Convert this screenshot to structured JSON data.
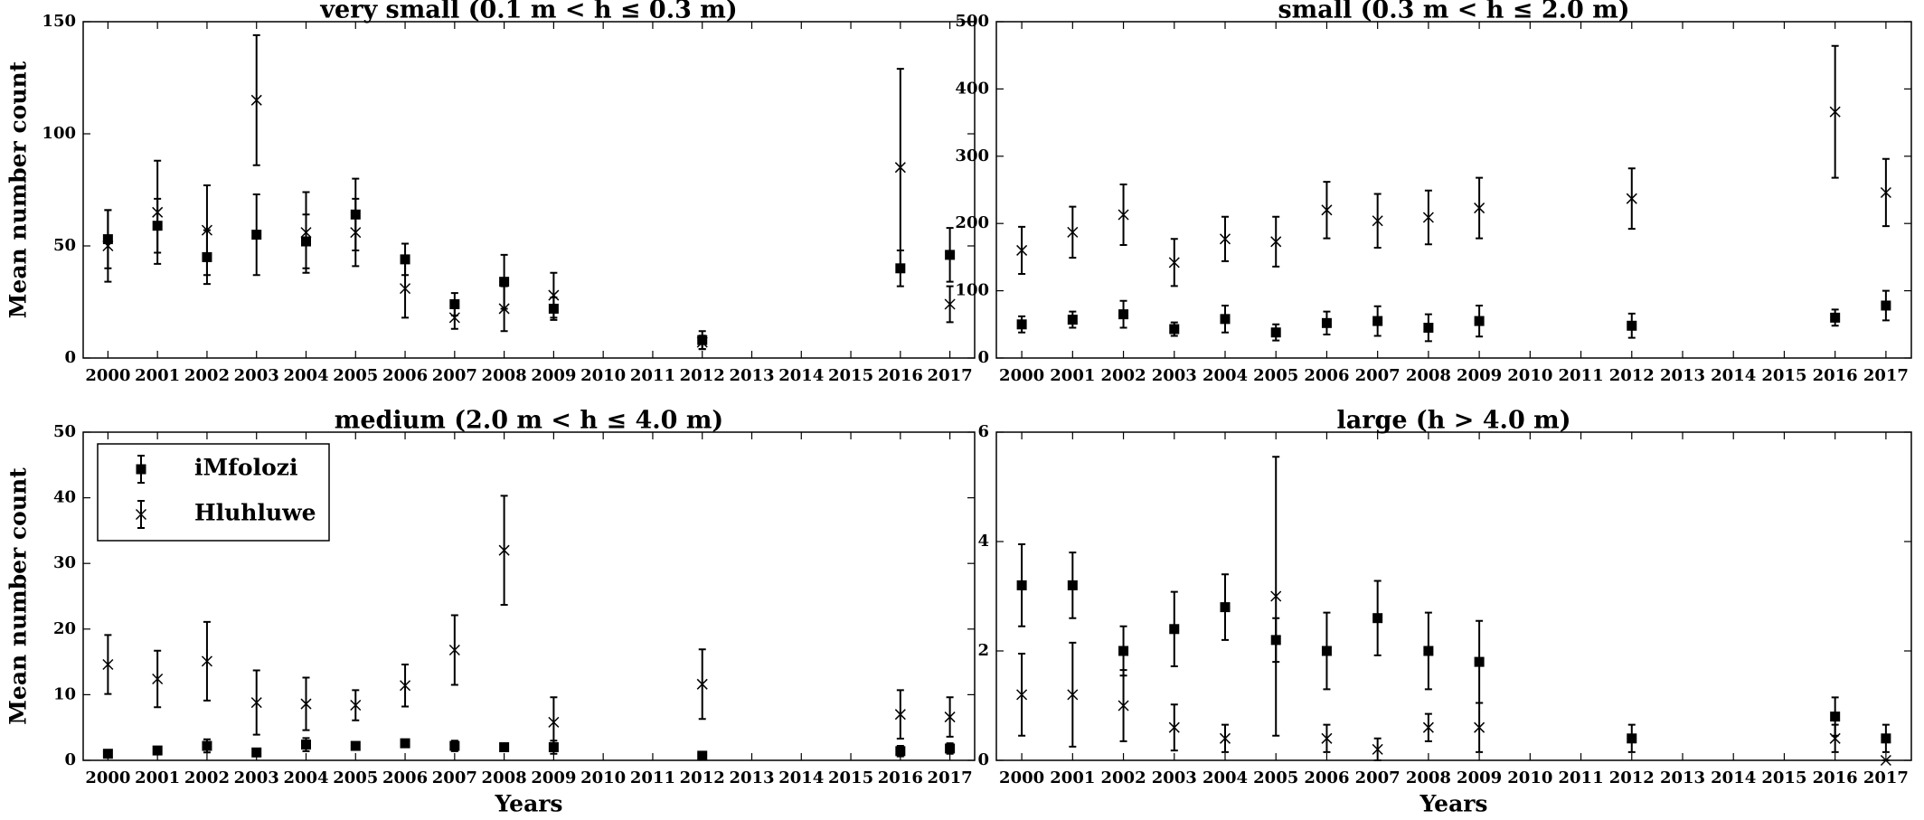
{
  "chart_data": [
    {
      "type": "errorbar",
      "title": "very small (0.1 m < h ≤ 0.3 m)",
      "ylabel": "Mean number count",
      "categories": [
        "2000",
        "2001",
        "2002",
        "2003",
        "2004",
        "2005",
        "2006",
        "2007",
        "2008",
        "2009",
        "2010",
        "2011",
        "2012",
        "2013",
        "2014",
        "2015",
        "2016",
        "2017"
      ],
      "series": [
        {
          "marker": "square",
          "color": "#000000",
          "values": [
            53,
            59,
            45,
            55,
            52,
            64,
            44,
            24,
            34,
            22,
            null,
            null,
            8,
            null,
            null,
            null,
            40,
            46
          ],
          "errors": [
            13,
            12,
            12,
            18,
            12,
            16,
            7,
            5,
            12,
            5,
            null,
            null,
            4,
            null,
            null,
            null,
            8,
            12
          ]
        },
        {
          "marker": "x",
          "color": "#000000",
          "values": [
            50,
            65,
            57,
            115,
            56,
            56,
            31,
            18,
            22,
            28,
            null,
            null,
            7,
            null,
            null,
            null,
            85,
            24
          ],
          "errors": [
            16,
            23,
            20,
            29,
            18,
            15,
            13,
            5,
            10,
            10,
            null,
            null,
            3,
            null,
            null,
            null,
            44,
            8
          ]
        }
      ],
      "ylim": [
        0,
        150
      ],
      "yticks": [
        0,
        50,
        100,
        150
      ]
    },
    {
      "type": "errorbar",
      "title": "small (0.3 m < h ≤ 2.0 m)",
      "categories": [
        "2000",
        "2001",
        "2002",
        "2003",
        "2004",
        "2005",
        "2006",
        "2007",
        "2008",
        "2009",
        "2010",
        "2011",
        "2012",
        "2013",
        "2014",
        "2015",
        "2016",
        "2017"
      ],
      "series": [
        {
          "marker": "square",
          "color": "#000000",
          "values": [
            50,
            57,
            65,
            43,
            58,
            38,
            52,
            55,
            45,
            55,
            null,
            null,
            48,
            null,
            null,
            null,
            60,
            78
          ],
          "errors": [
            12,
            12,
            20,
            10,
            20,
            12,
            17,
            22,
            20,
            23,
            null,
            null,
            18,
            null,
            null,
            null,
            12,
            22
          ]
        },
        {
          "marker": "x",
          "color": "#000000",
          "values": [
            160,
            187,
            213,
            142,
            177,
            173,
            220,
            204,
            209,
            223,
            null,
            null,
            237,
            null,
            null,
            null,
            366,
            246
          ],
          "errors": [
            35,
            38,
            45,
            35,
            33,
            37,
            42,
            40,
            40,
            45,
            null,
            null,
            45,
            null,
            null,
            null,
            98,
            50
          ]
        }
      ],
      "ylim": [
        0,
        500
      ],
      "yticks": [
        0,
        100,
        200,
        300,
        400,
        500
      ]
    },
    {
      "type": "errorbar",
      "title": "medium (2.0 m < h ≤ 4.0 m)",
      "ylabel": "Mean number count",
      "xlabel": "Years",
      "legend": "upper left",
      "categories": [
        "2000",
        "2001",
        "2002",
        "2003",
        "2004",
        "2005",
        "2006",
        "2007",
        "2008",
        "2009",
        "2010",
        "2011",
        "2012",
        "2013",
        "2014",
        "2015",
        "2016",
        "2017"
      ],
      "series": [
        {
          "name": "iMfolozi",
          "marker": "square",
          "color": "#000000",
          "values": [
            1,
            1.5,
            2.2,
            1.2,
            2.4,
            2.2,
            2.6,
            2.2,
            2,
            2,
            null,
            null,
            0.7,
            null,
            null,
            null,
            1.4,
            1.8
          ],
          "errors": [
            0.3,
            0.3,
            1,
            0.3,
            1,
            0.5,
            0.5,
            0.8,
            0.6,
            1,
            null,
            null,
            0.3,
            null,
            null,
            null,
            0.8,
            0.8
          ]
        },
        {
          "name": "Hluhluwe",
          "marker": "x",
          "color": "#000000",
          "values": [
            14.6,
            12.4,
            15.1,
            8.8,
            8.6,
            8.4,
            11.4,
            16.8,
            32,
            5.8,
            null,
            null,
            11.6,
            null,
            null,
            null,
            7,
            6.6
          ],
          "errors": [
            4.5,
            4.3,
            6,
            4.9,
            4,
            2.3,
            3.2,
            5.3,
            8.3,
            3.8,
            null,
            null,
            5.3,
            null,
            null,
            null,
            3.7,
            3
          ]
        }
      ],
      "ylim": [
        0,
        50
      ],
      "yticks": [
        0,
        10,
        20,
        30,
        40,
        50
      ]
    },
    {
      "type": "errorbar",
      "title": "large (h > 4.0 m)",
      "xlabel": "Years",
      "categories": [
        "2000",
        "2001",
        "2002",
        "2003",
        "2004",
        "2005",
        "2006",
        "2007",
        "2008",
        "2009",
        "2010",
        "2011",
        "2012",
        "2013",
        "2014",
        "2015",
        "2016",
        "2017"
      ],
      "series": [
        {
          "marker": "square",
          "color": "#000000",
          "values": [
            3.2,
            3.2,
            2,
            2.4,
            2.8,
            2.2,
            2,
            2.6,
            2,
            1.8,
            null,
            null,
            0.4,
            null,
            null,
            null,
            0.8,
            0.4
          ],
          "errors": [
            0.75,
            0.6,
            0.45,
            0.68,
            0.6,
            0.4,
            0.7,
            0.68,
            0.7,
            0.75,
            null,
            null,
            0.25,
            null,
            null,
            null,
            0.35,
            0.25
          ]
        },
        {
          "marker": "x",
          "color": "#000000",
          "values": [
            1.2,
            1.2,
            1,
            0.6,
            0.4,
            3,
            0.4,
            0.2,
            0.6,
            0.6,
            null,
            null,
            null,
            null,
            null,
            null,
            0.4,
            0
          ],
          "errors": [
            0.75,
            0.95,
            0.65,
            0.42,
            0.25,
            2.55,
            0.25,
            0.2,
            0.25,
            0.45,
            null,
            null,
            null,
            null,
            null,
            null,
            0.25,
            0
          ]
        }
      ],
      "ylim": [
        0,
        6
      ],
      "yticks": [
        0,
        2,
        4,
        6
      ]
    }
  ]
}
